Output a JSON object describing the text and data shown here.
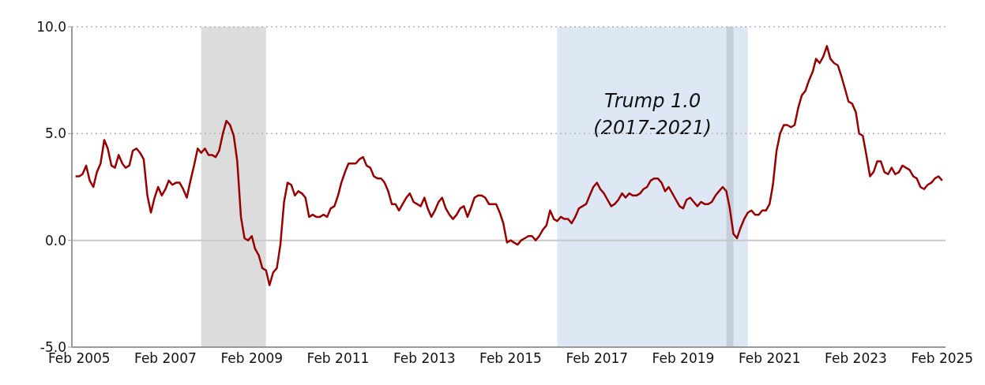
{
  "chart_data": {
    "type": "line",
    "x": [
      "2005-01",
      "2005-02",
      "2005-03",
      "2005-04",
      "2005-05",
      "2005-06",
      "2005-07",
      "2005-08",
      "2005-09",
      "2005-10",
      "2005-11",
      "2005-12",
      "2006-01",
      "2006-02",
      "2006-03",
      "2006-04",
      "2006-05",
      "2006-06",
      "2006-07",
      "2006-08",
      "2006-09",
      "2006-10",
      "2006-11",
      "2006-12",
      "2007-01",
      "2007-02",
      "2007-03",
      "2007-04",
      "2007-05",
      "2007-06",
      "2007-07",
      "2007-08",
      "2007-09",
      "2007-10",
      "2007-11",
      "2007-12",
      "2008-01",
      "2008-02",
      "2008-03",
      "2008-04",
      "2008-05",
      "2008-06",
      "2008-07",
      "2008-08",
      "2008-09",
      "2008-10",
      "2008-11",
      "2008-12",
      "2009-01",
      "2009-02",
      "2009-03",
      "2009-04",
      "2009-05",
      "2009-06",
      "2009-07",
      "2009-08",
      "2009-09",
      "2009-10",
      "2009-11",
      "2009-12",
      "2010-01",
      "2010-02",
      "2010-03",
      "2010-04",
      "2010-05",
      "2010-06",
      "2010-07",
      "2010-08",
      "2010-09",
      "2010-10",
      "2010-11",
      "2010-12",
      "2011-01",
      "2011-02",
      "2011-03",
      "2011-04",
      "2011-05",
      "2011-06",
      "2011-07",
      "2011-08",
      "2011-09",
      "2011-10",
      "2011-11",
      "2011-12",
      "2012-01",
      "2012-02",
      "2012-03",
      "2012-04",
      "2012-05",
      "2012-06",
      "2012-07",
      "2012-08",
      "2012-09",
      "2012-10",
      "2012-11",
      "2012-12",
      "2013-01",
      "2013-02",
      "2013-03",
      "2013-04",
      "2013-05",
      "2013-06",
      "2013-07",
      "2013-08",
      "2013-09",
      "2013-10",
      "2013-11",
      "2013-12",
      "2014-01",
      "2014-02",
      "2014-03",
      "2014-04",
      "2014-05",
      "2014-06",
      "2014-07",
      "2014-08",
      "2014-09",
      "2014-10",
      "2014-11",
      "2014-12",
      "2015-01",
      "2015-02",
      "2015-03",
      "2015-04",
      "2015-05",
      "2015-06",
      "2015-07",
      "2015-08",
      "2015-09",
      "2015-10",
      "2015-11",
      "2015-12",
      "2016-01",
      "2016-02",
      "2016-03",
      "2016-04",
      "2016-05",
      "2016-06",
      "2016-07",
      "2016-08",
      "2016-09",
      "2016-10",
      "2016-11",
      "2016-12",
      "2017-01",
      "2017-02",
      "2017-03",
      "2017-04",
      "2017-05",
      "2017-06",
      "2017-07",
      "2017-08",
      "2017-09",
      "2017-10",
      "2017-11",
      "2017-12",
      "2018-01",
      "2018-02",
      "2018-03",
      "2018-04",
      "2018-05",
      "2018-06",
      "2018-07",
      "2018-08",
      "2018-09",
      "2018-10",
      "2018-11",
      "2018-12",
      "2019-01",
      "2019-02",
      "2019-03",
      "2019-04",
      "2019-05",
      "2019-06",
      "2019-07",
      "2019-08",
      "2019-09",
      "2019-10",
      "2019-11",
      "2019-12",
      "2020-01",
      "2020-02",
      "2020-03",
      "2020-04",
      "2020-05",
      "2020-06",
      "2020-07",
      "2020-08",
      "2020-09",
      "2020-10",
      "2020-11",
      "2020-12",
      "2021-01",
      "2021-02",
      "2021-03",
      "2021-04",
      "2021-05",
      "2021-06",
      "2021-07",
      "2021-08",
      "2021-09",
      "2021-10",
      "2021-11",
      "2021-12",
      "2022-01",
      "2022-02",
      "2022-03",
      "2022-04",
      "2022-05",
      "2022-06",
      "2022-07",
      "2022-08",
      "2022-09",
      "2022-10",
      "2022-11",
      "2022-12",
      "2023-01",
      "2023-02",
      "2023-03",
      "2023-04",
      "2023-05",
      "2023-06",
      "2023-07",
      "2023-08",
      "2023-09",
      "2023-10",
      "2023-11",
      "2023-12",
      "2024-01",
      "2024-02",
      "2024-03",
      "2024-04",
      "2024-05",
      "2024-06",
      "2024-07",
      "2024-08",
      "2024-09",
      "2024-10",
      "2024-11",
      "2024-12",
      "2025-01",
      "2025-02"
    ],
    "values": [
      3.0,
      3.0,
      3.1,
      3.5,
      2.8,
      2.5,
      3.2,
      3.6,
      4.7,
      4.3,
      3.5,
      3.4,
      4.0,
      3.6,
      3.4,
      3.5,
      4.2,
      4.3,
      4.1,
      3.8,
      2.1,
      1.3,
      2.0,
      2.5,
      2.1,
      2.4,
      2.8,
      2.6,
      2.7,
      2.7,
      2.4,
      2.0,
      2.8,
      3.5,
      4.3,
      4.1,
      4.3,
      4.0,
      4.0,
      3.9,
      4.2,
      5.0,
      5.6,
      5.4,
      4.9,
      3.7,
      1.1,
      0.1,
      0.0,
      0.2,
      -0.4,
      -0.7,
      -1.3,
      -1.4,
      -2.1,
      -1.5,
      -1.3,
      -0.2,
      1.8,
      2.7,
      2.6,
      2.1,
      2.3,
      2.2,
      2.0,
      1.1,
      1.2,
      1.1,
      1.1,
      1.2,
      1.1,
      1.5,
      1.6,
      2.1,
      2.7,
      3.2,
      3.6,
      3.6,
      3.6,
      3.8,
      3.9,
      3.5,
      3.4,
      3.0,
      2.9,
      2.9,
      2.7,
      2.3,
      1.7,
      1.7,
      1.4,
      1.7,
      2.0,
      2.2,
      1.8,
      1.7,
      1.6,
      2.0,
      1.5,
      1.1,
      1.4,
      1.8,
      2.0,
      1.5,
      1.2,
      1.0,
      1.2,
      1.5,
      1.6,
      1.1,
      1.5,
      2.0,
      2.1,
      2.1,
      2.0,
      1.7,
      1.7,
      1.7,
      1.3,
      0.8,
      -0.1,
      0.0,
      -0.1,
      -0.2,
      0.0,
      0.1,
      0.2,
      0.2,
      0.0,
      0.2,
      0.5,
      0.7,
      1.4,
      1.0,
      0.9,
      1.1,
      1.0,
      1.0,
      0.8,
      1.1,
      1.5,
      1.6,
      1.7,
      2.1,
      2.5,
      2.7,
      2.4,
      2.2,
      1.9,
      1.6,
      1.7,
      1.9,
      2.2,
      2.0,
      2.2,
      2.1,
      2.1,
      2.2,
      2.4,
      2.5,
      2.8,
      2.9,
      2.9,
      2.7,
      2.3,
      2.5,
      2.2,
      1.9,
      1.6,
      1.5,
      1.9,
      2.0,
      1.8,
      1.6,
      1.8,
      1.7,
      1.7,
      1.8,
      2.1,
      2.3,
      2.5,
      2.3,
      1.5,
      0.3,
      0.1,
      0.6,
      1.0,
      1.3,
      1.4,
      1.2,
      1.2,
      1.4,
      1.4,
      1.7,
      2.6,
      4.2,
      5.0,
      5.4,
      5.4,
      5.3,
      5.4,
      6.2,
      6.8,
      7.0,
      7.5,
      7.9,
      8.5,
      8.3,
      8.6,
      9.1,
      8.5,
      8.3,
      8.2,
      7.7,
      7.1,
      6.5,
      6.4,
      6.0,
      5.0,
      4.9,
      4.0,
      3.0,
      3.2,
      3.7,
      3.7,
      3.2,
      3.1,
      3.4,
      3.1,
      3.2,
      3.5,
      3.4,
      3.3,
      3.0,
      2.9,
      2.5,
      2.4,
      2.6,
      2.7,
      2.9,
      3.0,
      2.8
    ],
    "color": "#990000",
    "line_style": "solid",
    "xlim": [
      "2004-12",
      "2025-03"
    ],
    "xticks": [
      {
        "value": "2005-02",
        "label": "Feb 2005"
      },
      {
        "value": "2007-02",
        "label": "Feb 2007"
      },
      {
        "value": "2009-02",
        "label": "Feb 2009"
      },
      {
        "value": "2011-02",
        "label": "Feb 2011"
      },
      {
        "value": "2013-02",
        "label": "Feb 2013"
      },
      {
        "value": "2015-02",
        "label": "Feb 2015"
      },
      {
        "value": "2017-02",
        "label": "Feb 2017"
      },
      {
        "value": "2019-02",
        "label": "Feb 2019"
      },
      {
        "value": "2021-02",
        "label": "Feb 2021"
      },
      {
        "value": "2023-02",
        "label": "Feb 2023"
      },
      {
        "value": "2025-02",
        "label": "Feb 2025"
      }
    ],
    "ylim": [
      -5,
      10
    ],
    "yticks": [
      {
        "value": -5,
        "label": "-5.0"
      },
      {
        "value": 0,
        "label": "0.0"
      },
      {
        "value": 5,
        "label": "5.0"
      },
      {
        "value": 10,
        "label": "10.0"
      }
    ],
    "ref_lines": [
      {
        "axis": "y",
        "value": 0,
        "color": "#c8c8c8",
        "line_style": "solid"
      },
      {
        "axis": "y",
        "value": 5,
        "color": "#b4b4b4",
        "line_style": "dotted"
      },
      {
        "axis": "y",
        "value": 10,
        "color": "#b4b4b4",
        "line_style": "dotted"
      }
    ],
    "bands": [
      {
        "axis": "x",
        "from": "2007-12",
        "to": "2009-06",
        "color": "#dcdcdc"
      },
      {
        "axis": "x",
        "from": "2016-03",
        "to": "2020-08",
        "color": "#dde8f4",
        "label": "Trump 1.0\n(2017-2021)"
      },
      {
        "axis": "x",
        "from": "2020-02",
        "to": "2020-04",
        "color": "#c5cfdb"
      }
    ]
  }
}
